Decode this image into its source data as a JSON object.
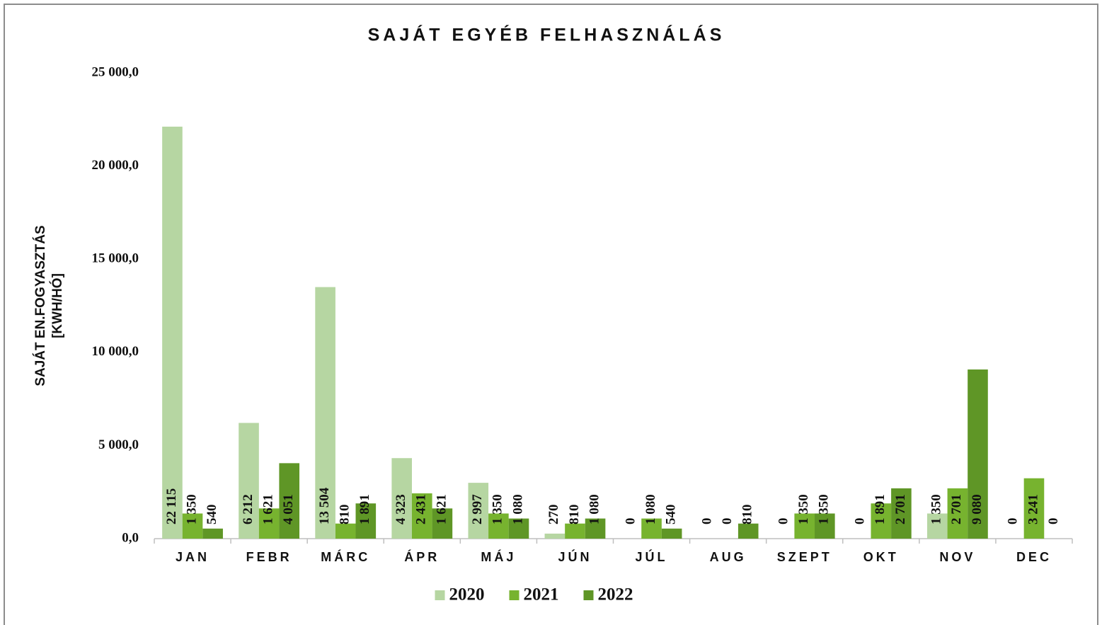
{
  "chart_data": {
    "type": "bar",
    "title": "SAJÁT EGYÉB FELHASZNÁLÁS",
    "ylabel": [
      "SAJÁT EN.FOGYASZTÁS",
      "[KWH/HÓ]"
    ],
    "categories": [
      "JAN",
      "FEBR",
      "MÁRC",
      "ÁPR",
      "MÁJ",
      "JÚN",
      "JÚL",
      "AUG",
      "SZEPT",
      "OKT",
      "NOV",
      "DEC"
    ],
    "series": [
      {
        "name": "2020",
        "color": "#b6d6a2",
        "values": [
          22115,
          6212,
          13504,
          4323,
          2997,
          270,
          0,
          0,
          0,
          0,
          1350,
          0
        ],
        "value_labels": [
          "22 115",
          "6 212",
          "13 504",
          "4 323",
          "2 997",
          "270",
          "0",
          "0",
          "0",
          "0",
          "1 350",
          "0"
        ]
      },
      {
        "name": "2021",
        "color": "#77b32f",
        "values": [
          1350,
          1621,
          810,
          2431,
          1350,
          810,
          1080,
          0,
          1350,
          1891,
          2701,
          3241
        ],
        "value_labels": [
          "1 350",
          "1 621",
          "810",
          "2 431",
          "1 350",
          "810",
          "1 080",
          "0",
          "1 350",
          "1 891",
          "2 701",
          "3 241"
        ]
      },
      {
        "name": "2022",
        "color": "#5f9626",
        "values": [
          540,
          4051,
          1891,
          1621,
          1080,
          1080,
          540,
          810,
          1350,
          2701,
          9080,
          0
        ],
        "value_labels": [
          "540",
          "4 051",
          "1 891",
          "1 621",
          "1 080",
          "1 080",
          "540",
          "810",
          "1 350",
          "2 701",
          "9 080",
          "0"
        ]
      }
    ],
    "ylim": [
      0,
      25000
    ],
    "yticks": [
      {
        "value": 0,
        "label": "0,0"
      },
      {
        "value": 5000,
        "label": "5 000,0"
      },
      {
        "value": 10000,
        "label": "10 000,0"
      },
      {
        "value": 15000,
        "label": "15 000,0"
      },
      {
        "value": 20000,
        "label": "20 000,0"
      },
      {
        "value": 25000,
        "label": "25 000,0"
      }
    ],
    "legend": "bottom"
  }
}
